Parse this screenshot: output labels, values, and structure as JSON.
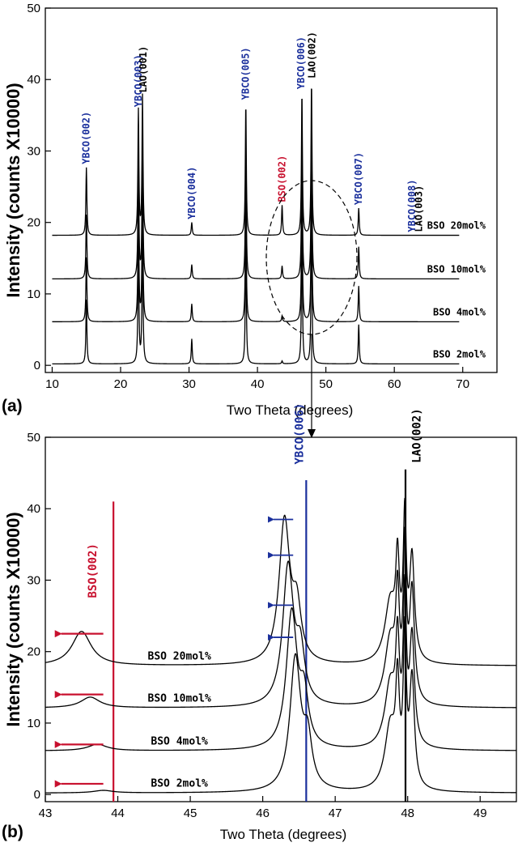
{
  "chart_data": [
    {
      "type": "line",
      "panel_label": "(a)",
      "xlabel": "Two Theta (degrees)",
      "ylabel": "Intensity (counts X10000)",
      "xlim": [
        9,
        75
      ],
      "ylim": [
        -1,
        50
      ],
      "x_ticks": [
        10,
        20,
        30,
        40,
        50,
        60,
        70
      ],
      "y_ticks": [
        0,
        10,
        20,
        30,
        40,
        50
      ],
      "series": [
        {
          "name": "BSO 20mol%",
          "baseline": 18.2
        },
        {
          "name": "BSO 10mol%",
          "baseline": 12.1
        },
        {
          "name": "BSO 4mol%",
          "baseline": 6.1
        },
        {
          "name": "BSO 2mol%",
          "baseline": 0.2
        }
      ],
      "peaks": [
        {
          "x": 15.0,
          "heights": [
            9.5,
            9.0,
            9.0,
            9.0
          ]
        },
        {
          "x": 22.6,
          "heights": [
            17.5,
            17.0,
            17.0,
            17.0
          ]
        },
        {
          "x": 23.2,
          "heights": [
            19.5,
            19.0,
            19.0,
            19.0
          ]
        },
        {
          "x": 30.4,
          "heights": [
            1.8,
            2.0,
            2.5,
            3.5
          ]
        },
        {
          "x": 38.3,
          "heights": [
            18.5,
            18.0,
            18.0,
            18.0
          ]
        },
        {
          "x": 43.6,
          "heights": [
            4.2,
            1.8,
            0.8,
            0.4
          ]
        },
        {
          "x": 46.5,
          "heights": [
            20.0,
            19.5,
            19.5,
            19.5
          ]
        },
        {
          "x": 47.9,
          "heights": [
            21.5,
            21.0,
            21.0,
            21.0
          ]
        },
        {
          "x": 54.8,
          "heights": [
            3.8,
            4.5,
            5.0,
            5.5
          ]
        }
      ],
      "annotations": [
        {
          "text": "YBCO(002)",
          "x": 15.0,
          "color": "#1a2f9c"
        },
        {
          "text": "YBCO(003)",
          "x": 22.6,
          "color": "#1a2f9c"
        },
        {
          "text": "LAO(001)",
          "x": 23.3,
          "color": "#000000"
        },
        {
          "text": "YBCO(004)",
          "x": 30.4,
          "color": "#1a2f9c"
        },
        {
          "text": "YBCO(005)",
          "x": 38.3,
          "color": "#1a2f9c"
        },
        {
          "text": "BSO(002)",
          "x": 43.6,
          "color": "#c8102e"
        },
        {
          "text": "YBCO(006)",
          "x": 46.4,
          "color": "#1a2f9c"
        },
        {
          "text": "LAO(002)",
          "x": 48.0,
          "color": "#000000"
        },
        {
          "text": "YBCO(007)",
          "x": 54.8,
          "color": "#1a2f9c"
        },
        {
          "text": "YBCO(008)",
          "x": 62.6,
          "color": "#1a2f9c"
        },
        {
          "text": "LAO(003)",
          "x": 63.6,
          "color": "#000000"
        }
      ]
    },
    {
      "type": "line",
      "panel_label": "(b)",
      "xlabel": "Two Theta (degrees)",
      "ylabel": "Intensity (counts X10000)",
      "xlim": [
        43,
        49.5
      ],
      "ylim": [
        -1,
        50
      ],
      "x_ticks": [
        43,
        44,
        45,
        46,
        47,
        48,
        49
      ],
      "y_ticks": [
        0,
        10,
        20,
        30,
        40,
        50
      ],
      "series": [
        {
          "name": "BSO 20mol%",
          "baseline": 18.0
        },
        {
          "name": "BSO 10mol%",
          "baseline": 12.1
        },
        {
          "name": "BSO 4mol%",
          "baseline": 6.1
        },
        {
          "name": "BSO 2mol%",
          "baseline": 0.2
        }
      ],
      "bso_peak": {
        "positions": [
          43.5,
          43.62,
          43.72,
          43.8
        ],
        "heights": [
          4.8,
          1.5,
          0.9,
          0.35
        ]
      },
      "ybco_peak": {
        "positions": [
          46.3,
          46.35,
          46.4,
          46.45
        ],
        "heights": [
          20.0,
          19.5,
          19.0,
          18.5
        ]
      },
      "lao_peak": {
        "positions": [
          47.95,
          47.95,
          47.95,
          47.95
        ],
        "heights": [
          19.0,
          20.5,
          20.0,
          20.0
        ]
      },
      "reference_lines": [
        {
          "x": 43.94,
          "ymax": 41,
          "color": "#c8102e"
        },
        {
          "x": 46.6,
          "ymax": 44,
          "color": "#1a2f9c"
        },
        {
          "x": 47.97,
          "ymax": 45.5,
          "color": "#000000"
        }
      ],
      "annotations": [
        {
          "text": "BSO(002)",
          "x": 43.65,
          "color": "#c8102e"
        },
        {
          "text": "YBCO(006)",
          "x": 46.5,
          "color": "#1a2f9c"
        },
        {
          "text": "LAO(002)",
          "x": 48.12,
          "color": "#000000"
        }
      ],
      "shift_arrows": {
        "blue": {
          "y": [
            38.5,
            33.5,
            26.5,
            22.0
          ],
          "from_x": 46.42,
          "to_x": 46.15
        },
        "red": {
          "y": [
            22.5,
            14.0,
            7.0,
            1.5
          ],
          "from_x": 43.8,
          "to_x": 43.22
        }
      }
    }
  ],
  "colors": {
    "ybco": "#1a2f9c",
    "bso": "#c8102e",
    "lao": "#000000"
  }
}
